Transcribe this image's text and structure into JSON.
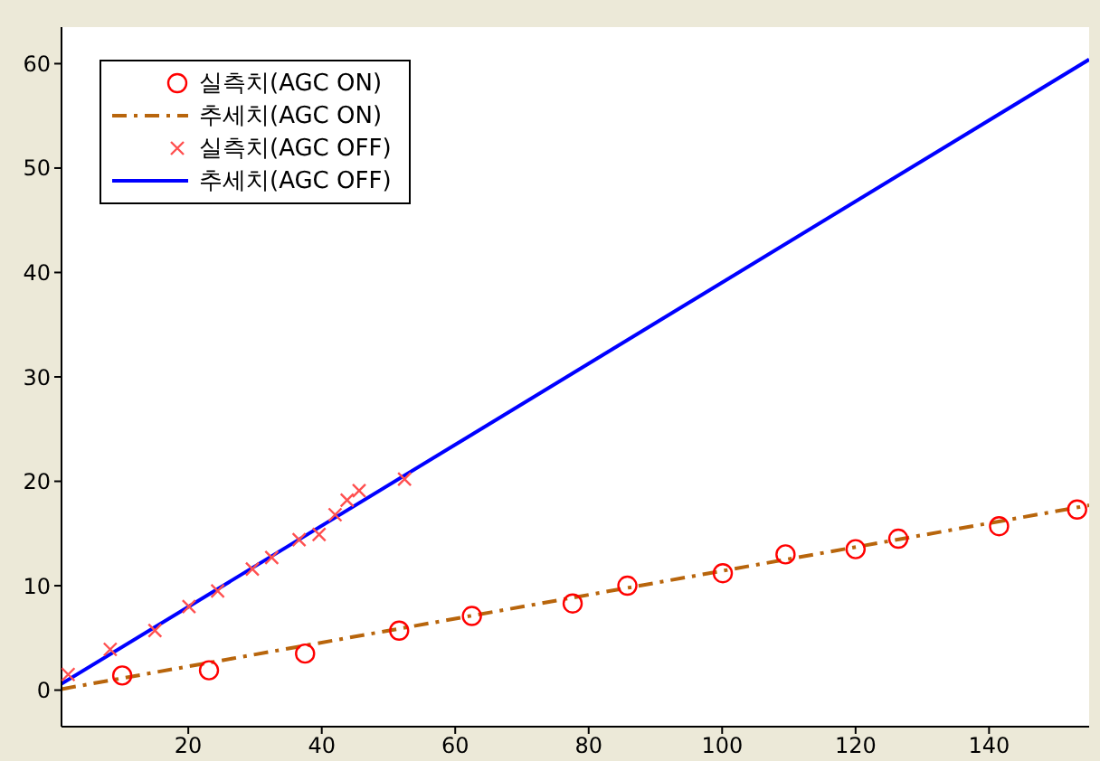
{
  "chart_data": {
    "type": "scatter",
    "xlim": [
      1,
      155
    ],
    "ylim": [
      -3.5,
      63.5
    ],
    "xticks": [
      20,
      40,
      60,
      80,
      100,
      120,
      140
    ],
    "yticks": [
      0,
      10,
      20,
      30,
      40,
      50,
      60
    ],
    "grid": false,
    "legend": "top left",
    "series": [
      {
        "name": "실측치(AGC ON)",
        "type": "scatter",
        "marker": "circle",
        "color": "#ff0000",
        "x": [
          10.1,
          23.1,
          37.5,
          51.6,
          62.5,
          77.6,
          85.8,
          100.1,
          109.5,
          120,
          126.4,
          141.5,
          153.2
        ],
        "values": [
          1.4,
          1.9,
          3.5,
          5.7,
          7.1,
          8.3,
          10.0,
          11.2,
          13.0,
          13.5,
          14.5,
          15.7,
          17.3
        ]
      },
      {
        "name": "추세치(AGC ON)",
        "type": "line",
        "marker": "none",
        "line_style": "dashed",
        "color": "#b8650c",
        "x": [
          1,
          155
        ],
        "values": [
          0.1,
          17.7
        ]
      },
      {
        "name": "실측치(AGC OFF)",
        "type": "scatter",
        "marker": "cross",
        "color": "#ff5050",
        "x": [
          2,
          8.3,
          15,
          20.1,
          24.4,
          29.6,
          32.5,
          36.6,
          39.6,
          42,
          43.8,
          45.6,
          52.4
        ],
        "values": [
          1.5,
          3.9,
          5.7,
          8.0,
          9.5,
          11.6,
          12.7,
          14.4,
          14.9,
          16.8,
          18.2,
          19.1,
          20.2
        ]
      },
      {
        "name": "추세치(AGC OFF)",
        "type": "line",
        "marker": "none",
        "line_style": "solid",
        "color": "#0000ff",
        "x": [
          1,
          155
        ],
        "values": [
          0.6,
          60.4
        ]
      }
    ]
  }
}
